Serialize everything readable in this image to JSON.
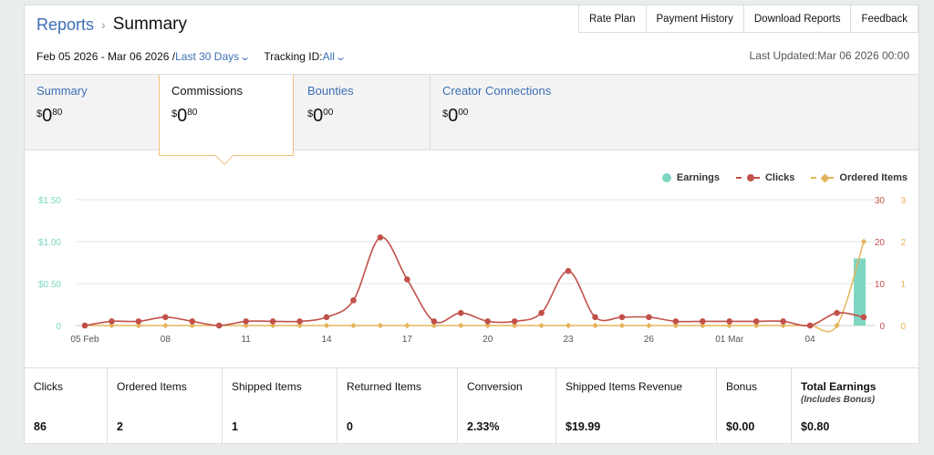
{
  "breadcrumb": {
    "root": "Reports",
    "separator": "›",
    "current": "Summary"
  },
  "top_buttons": [
    "Rate Plan",
    "Payment History",
    "Download Reports",
    "Feedback"
  ],
  "filters": {
    "date_range": "Feb 05 2026 - Mar 06 2026 /",
    "range_preset": "Last 30 Days",
    "tracking_label": "Tracking ID:",
    "tracking_value": "All"
  },
  "last_updated": "Last Updated:Mar 06 2026 00:00",
  "tabs": [
    {
      "label": "Summary",
      "currency": "$",
      "whole": "0",
      "cents": "80"
    },
    {
      "label": "Commissions",
      "currency": "$",
      "whole": "0",
      "cents": "80"
    },
    {
      "label": "Bounties",
      "currency": "$",
      "whole": "0",
      "cents": "00"
    },
    {
      "label": "Creator Connections",
      "currency": "$",
      "whole": "0",
      "cents": "00"
    }
  ],
  "legend": {
    "earnings": "Earnings",
    "clicks": "Clicks",
    "ordered": "Ordered Items"
  },
  "colors": {
    "earnings": "#7ed6c2",
    "clicks": "#c1504a",
    "ordered": "#e4b55b",
    "link": "#3b6eb5"
  },
  "chart_data": {
    "type": "line",
    "x": [
      "05 Feb",
      "06",
      "07",
      "08",
      "09",
      "10",
      "11",
      "12",
      "13",
      "14",
      "15",
      "16",
      "17",
      "18",
      "19",
      "20",
      "21",
      "22",
      "23",
      "24",
      "25",
      "26",
      "27",
      "28",
      "01 Mar",
      "02",
      "03",
      "04",
      "05",
      "06"
    ],
    "x_tick_labels": [
      "05 Feb",
      "08",
      "11",
      "14",
      "17",
      "20",
      "23",
      "26",
      "01 Mar",
      "04"
    ],
    "series": [
      {
        "name": "Earnings",
        "type": "bar",
        "axis": "left",
        "values": [
          0,
          0,
          0,
          0,
          0,
          0,
          0,
          0,
          0,
          0,
          0,
          0,
          0,
          0,
          0,
          0,
          0,
          0,
          0,
          0,
          0,
          0,
          0,
          0,
          0,
          0,
          0,
          0,
          0,
          0.8
        ]
      },
      {
        "name": "Clicks",
        "type": "line",
        "axis": "right1",
        "values": [
          0,
          1,
          1,
          2,
          1,
          0,
          1,
          1,
          1,
          2,
          6,
          21,
          11,
          1,
          3,
          1,
          1,
          3,
          13,
          2,
          2,
          2,
          1,
          1,
          1,
          1,
          1,
          0,
          3,
          2
        ]
      },
      {
        "name": "Ordered Items",
        "type": "line",
        "axis": "right2",
        "values": [
          0,
          0,
          0,
          0,
          0,
          0,
          0,
          0,
          0,
          0,
          0,
          0,
          0,
          0,
          0,
          0,
          0,
          0,
          0,
          0,
          0,
          0,
          0,
          0,
          0,
          0,
          0,
          0,
          0,
          2
        ]
      }
    ],
    "y_left": {
      "ticks": [
        "0",
        "$0.50",
        "$1.00",
        "$1.50"
      ],
      "max": 1.5
    },
    "y_right1": {
      "ticks": [
        "0",
        "10",
        "20",
        "30"
      ],
      "max": 30
    },
    "y_right2": {
      "ticks": [
        "0",
        "1",
        "2",
        "3"
      ],
      "max": 3
    },
    "grid": true,
    "legend_position": "top-right"
  },
  "stats": [
    {
      "label": "Clicks",
      "value": "86"
    },
    {
      "label": "Ordered Items",
      "value": "2"
    },
    {
      "label": "Shipped Items",
      "value": "1"
    },
    {
      "label": "Returned Items",
      "value": "0"
    },
    {
      "label": "Conversion",
      "value": "2.33%"
    },
    {
      "label": "Shipped Items Revenue",
      "value": "$19.99"
    },
    {
      "label": "Bonus",
      "value": "$0.00"
    },
    {
      "label": "Total Earnings",
      "sub": "(Includes Bonus)",
      "value": "$0.80"
    }
  ]
}
